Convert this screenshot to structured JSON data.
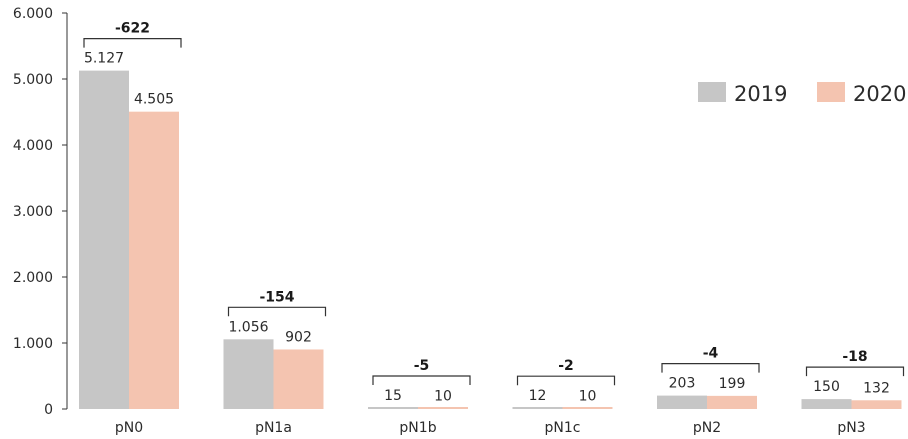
{
  "chart_data": {
    "type": "bar",
    "categories": [
      "pN0",
      "pN1a",
      "pN1b",
      "pN1c",
      "pN2",
      "pN3"
    ],
    "series": [
      {
        "name": "2019",
        "values": [
          5127,
          1056,
          15,
          12,
          203,
          150
        ],
        "labels": [
          "5.127",
          "1.056",
          "15",
          "12",
          "203",
          "150"
        ]
      },
      {
        "name": "2020",
        "values": [
          4505,
          902,
          10,
          10,
          199,
          132
        ],
        "labels": [
          "4.505",
          "902",
          "10",
          "10",
          "199",
          "132"
        ]
      }
    ],
    "differences": [
      "-622",
      "-154",
      "-5",
      "-2",
      "-4",
      "-18"
    ],
    "yticks": [
      0,
      1000,
      2000,
      3000,
      4000,
      5000,
      6000
    ],
    "ytick_labels": [
      "0",
      "1.000",
      "2.000",
      "3.000",
      "4.000",
      "5.000",
      "6.000"
    ],
    "ylim": [
      0,
      6000
    ],
    "legend_position": "top-right",
    "colors": {
      "2019": "#c6c6c6",
      "2020": "#f4c4b0",
      "axis": "#333333",
      "text": "#2b2b2b"
    }
  }
}
